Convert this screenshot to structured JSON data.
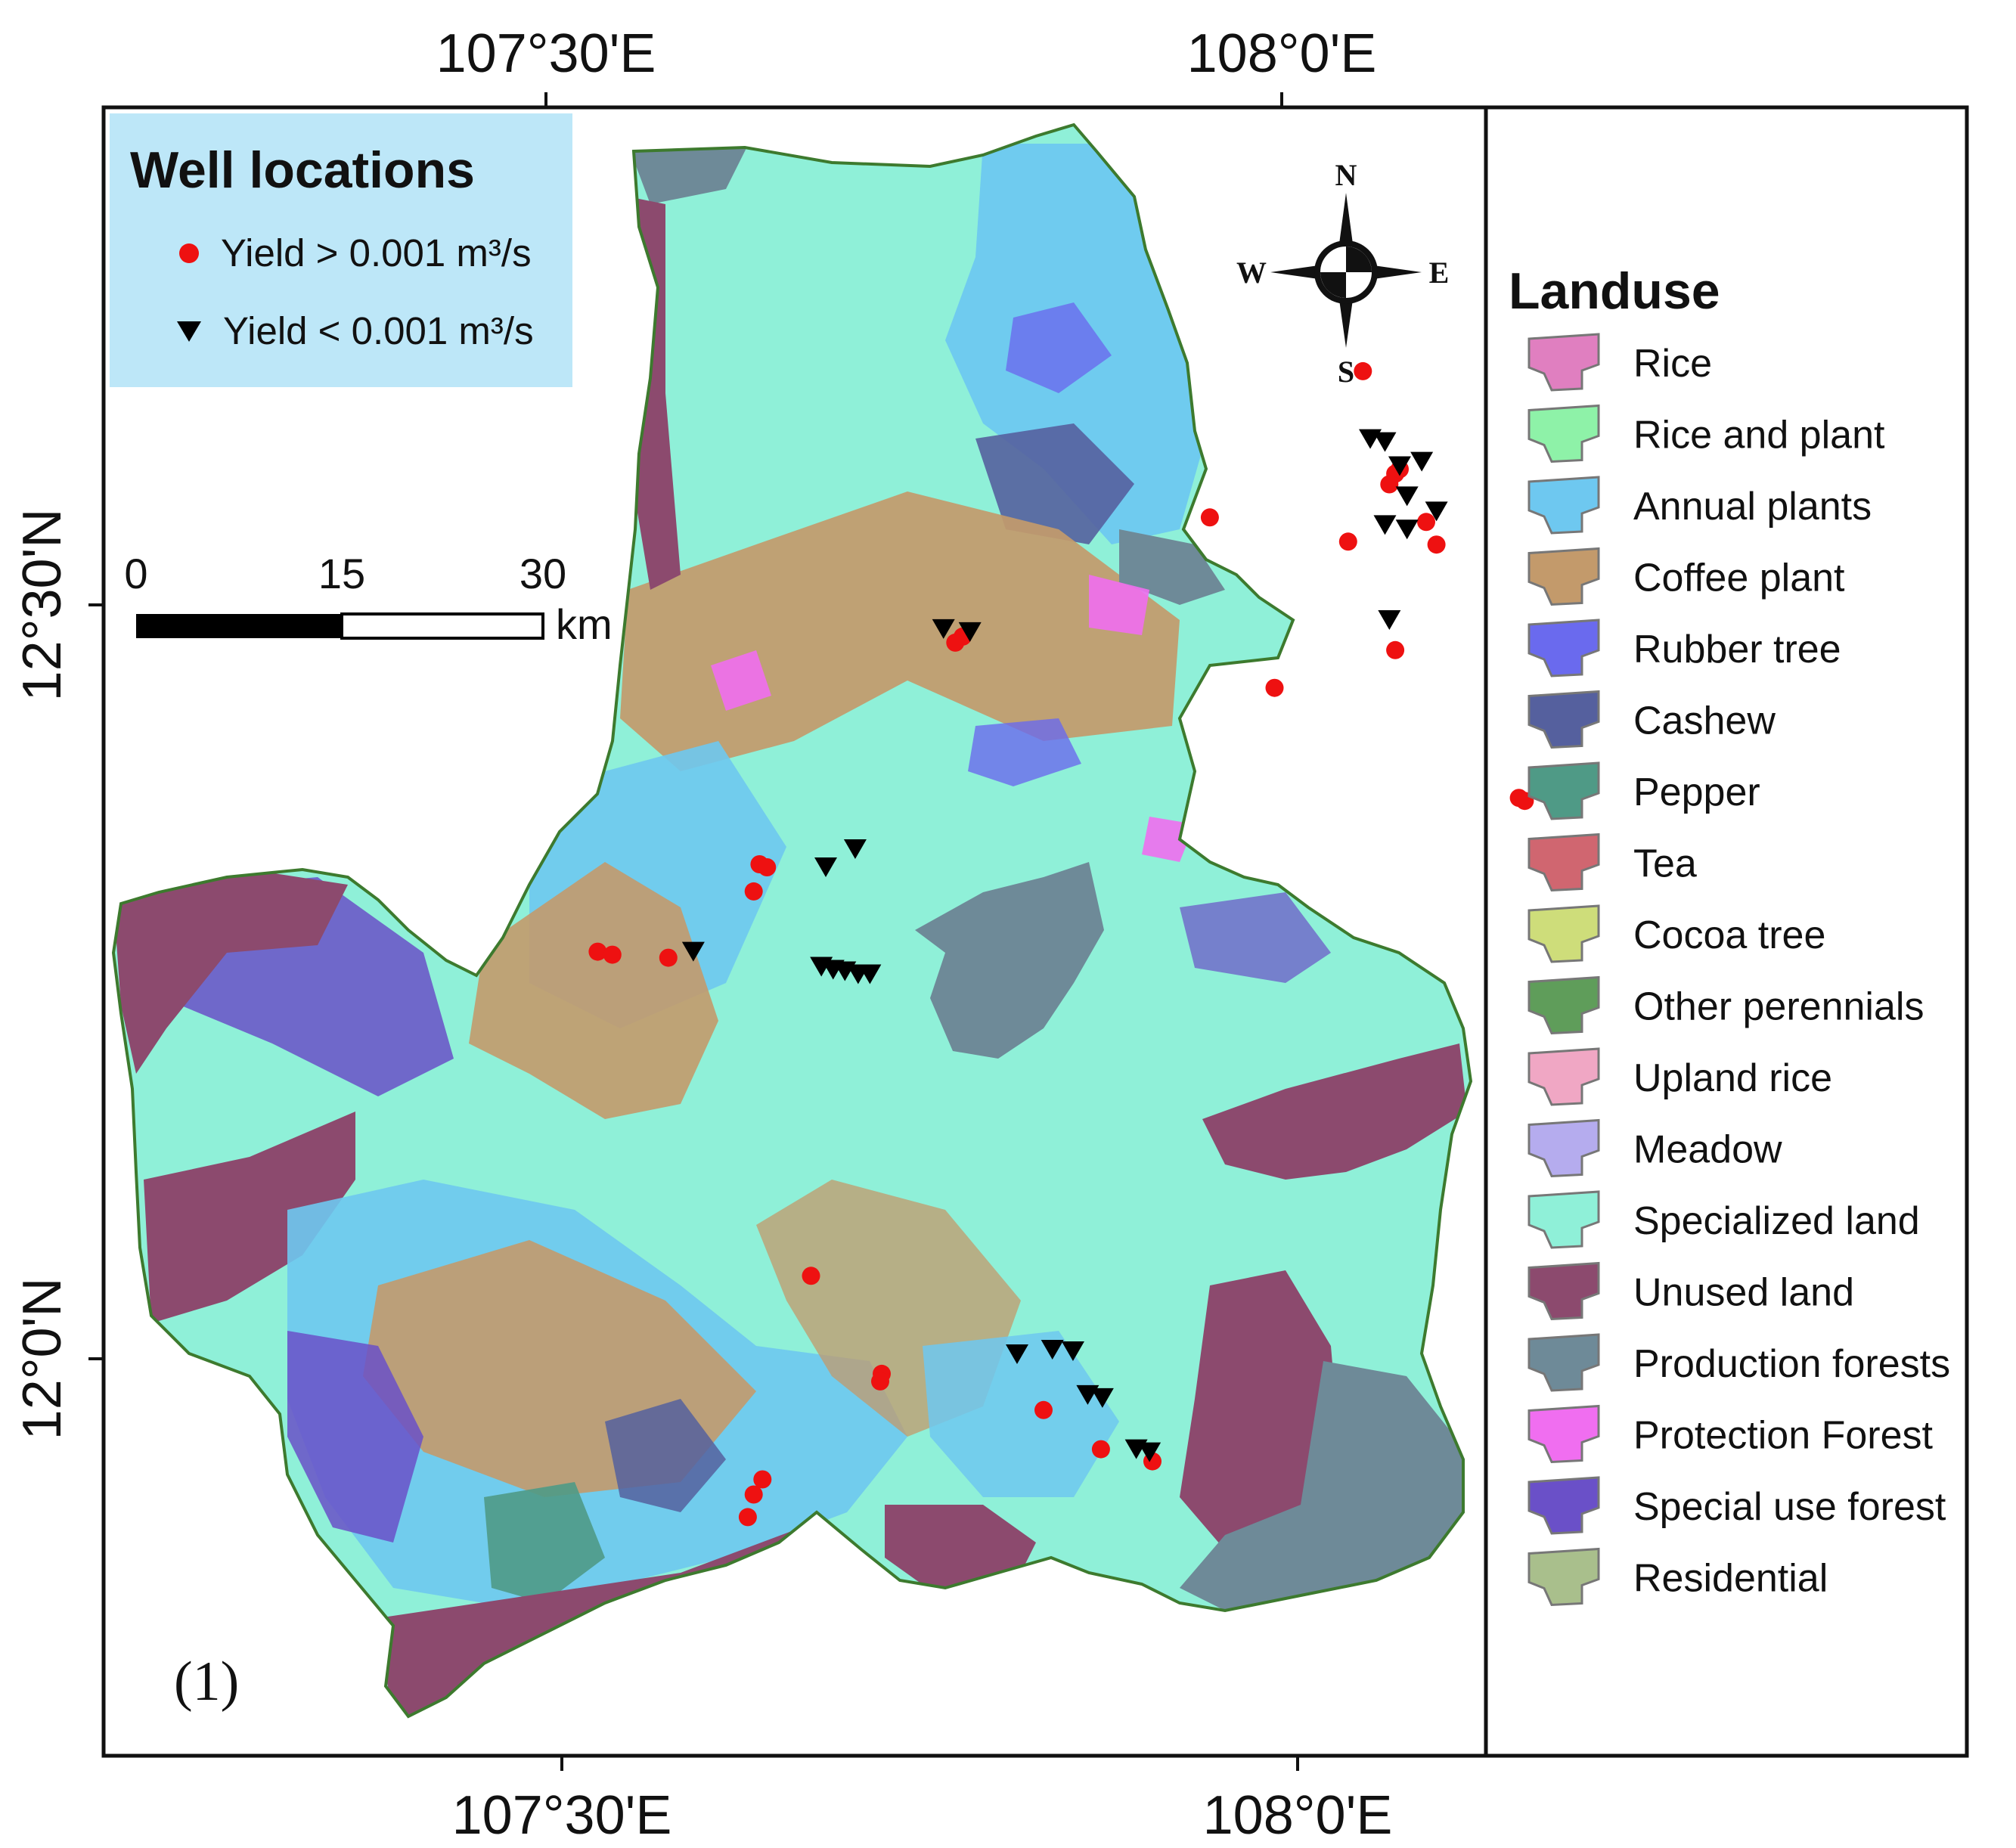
{
  "axes": {
    "top_labels": [
      "107°30'E",
      "108°0'E"
    ],
    "bottom_labels": [
      "107°30'E",
      "108°0'E"
    ],
    "left_labels": [
      "12°30'N",
      "12°0'N"
    ]
  },
  "wells": {
    "title": "Well locations",
    "legend": [
      {
        "label": "Yield > 0.001 m³/s",
        "symbol": "red-circle",
        "color": "#ee1111"
      },
      {
        "label": "Yield < 0.001 m³/s",
        "symbol": "black-triangle",
        "color": "#000000"
      }
    ],
    "high_yield": [
      [
        108.05,
        12.655
      ],
      [
        108.072,
        12.587
      ],
      [
        108.068,
        12.58
      ],
      [
        108.075,
        12.59
      ],
      [
        107.946,
        12.558
      ],
      [
        108.093,
        12.555
      ],
      [
        108.04,
        12.542
      ],
      [
        108.1,
        12.54
      ],
      [
        107.778,
        12.479
      ],
      [
        107.773,
        12.475
      ],
      [
        107.99,
        12.445
      ],
      [
        108.072,
        12.47
      ],
      [
        108.156,
        12.372
      ],
      [
        108.16,
        12.37
      ],
      [
        107.64,
        12.328
      ],
      [
        107.645,
        12.326
      ],
      [
        107.636,
        12.31
      ],
      [
        107.53,
        12.27
      ],
      [
        107.54,
        12.268
      ],
      [
        107.578,
        12.266
      ],
      [
        107.675,
        12.055
      ],
      [
        107.723,
        11.99
      ],
      [
        107.722,
        11.985
      ],
      [
        107.833,
        11.966
      ],
      [
        107.872,
        11.94
      ],
      [
        107.907,
        11.932
      ],
      [
        107.642,
        11.92
      ],
      [
        107.636,
        11.91
      ],
      [
        107.632,
        11.895
      ]
    ],
    "low_yield": [
      [
        108.055,
        12.61
      ],
      [
        108.065,
        12.608
      ],
      [
        108.075,
        12.592
      ],
      [
        108.09,
        12.595
      ],
      [
        108.08,
        12.572
      ],
      [
        108.1,
        12.562
      ],
      [
        108.08,
        12.55
      ],
      [
        108.065,
        12.553
      ],
      [
        108.068,
        12.49
      ],
      [
        107.765,
        12.484
      ],
      [
        107.783,
        12.482
      ],
      [
        107.705,
        12.338
      ],
      [
        107.685,
        12.326
      ],
      [
        107.595,
        12.27
      ],
      [
        107.682,
        12.26
      ],
      [
        107.69,
        12.258
      ],
      [
        107.698,
        12.257
      ],
      [
        107.707,
        12.255
      ],
      [
        107.715,
        12.255
      ],
      [
        107.815,
        12.003
      ],
      [
        107.839,
        12.006
      ],
      [
        107.853,
        12.005
      ],
      [
        107.863,
        11.976
      ],
      [
        107.873,
        11.974
      ],
      [
        107.896,
        11.94
      ],
      [
        107.905,
        11.938
      ]
    ]
  },
  "scale_bar": {
    "ticks": [
      "0",
      "15",
      "30"
    ],
    "unit": "km"
  },
  "compass": {
    "n": "N",
    "s": "S",
    "e": "E",
    "w": "W"
  },
  "panel_label": "(1)",
  "landuse": {
    "title": "Landuse",
    "classes": [
      {
        "label": "Rice",
        "color": "#e07fc0"
      },
      {
        "label": "Rice and plant",
        "color": "#8ef2a8"
      },
      {
        "label": "Annual plants",
        "color": "#6ec8f0"
      },
      {
        "label": "Coffee plant",
        "color": "#c39a6b"
      },
      {
        "label": "Rubber tree",
        "color": "#6a6aee"
      },
      {
        "label": "Cashew",
        "color": "#55609e"
      },
      {
        "label": "Pepper",
        "color": "#4f9a86"
      },
      {
        "label": "Tea",
        "color": "#d06670"
      },
      {
        "label": "Cocoa tree",
        "color": "#cedd7a"
      },
      {
        "label": "Other perennials",
        "color": "#5f9d5a"
      },
      {
        "label": "Upland rice",
        "color": "#f0a7c4"
      },
      {
        "label": "Meadow",
        "color": "#b5acee"
      },
      {
        "label": "Specialized land",
        "color": "#8ff0d8"
      },
      {
        "label": "Unused land",
        "color": "#8c4a6e"
      },
      {
        "label": "Production forests",
        "color": "#6e8a98"
      },
      {
        "label": "Protection Forest",
        "color": "#f06ef0"
      },
      {
        "label": "Special use forest",
        "color": "#6a50c8"
      },
      {
        "label": "Residential",
        "color": "#a9bf8c"
      }
    ]
  }
}
